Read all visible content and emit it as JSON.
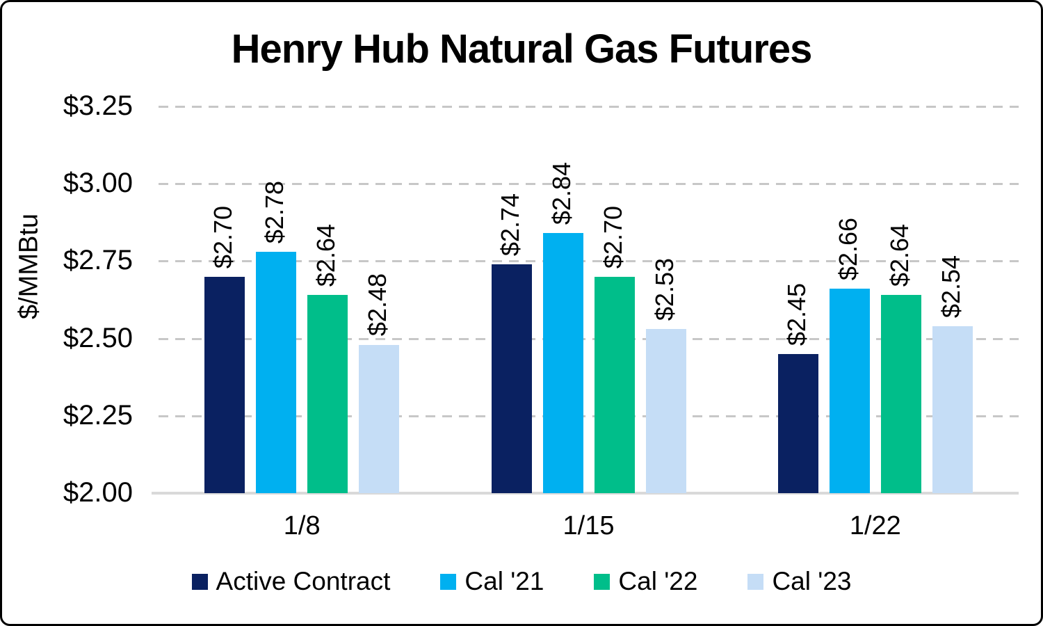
{
  "chart_data": {
    "type": "bar",
    "title": "Henry Hub Natural Gas Futures",
    "xlabel": "",
    "ylabel": "$/MMBtu",
    "categories": [
      "1/8",
      "1/15",
      "1/22"
    ],
    "series": [
      {
        "name": "Active Contract",
        "color": "#0a2161",
        "values": [
          2.7,
          2.74,
          2.45
        ],
        "labels": [
          "$2.70",
          "$2.74",
          "$2.45"
        ]
      },
      {
        "name": "Cal '21",
        "color": "#00b0f0",
        "values": [
          2.78,
          2.84,
          2.66
        ],
        "labels": [
          "$2.78",
          "$2.84",
          "$2.66"
        ]
      },
      {
        "name": "Cal '22",
        "color": "#00be8a",
        "values": [
          2.64,
          2.7,
          2.64
        ],
        "labels": [
          "$2.64",
          "$2.70",
          "$2.64"
        ]
      },
      {
        "name": "Cal '23",
        "color": "#c5ddf6",
        "values": [
          2.48,
          2.53,
          2.54
        ],
        "labels": [
          "$2.48",
          "$2.53",
          "$2.54"
        ]
      }
    ],
    "y_axis": {
      "ylim": [
        2.0,
        3.25
      ],
      "tick_step": 0.25,
      "tick_labels_top_to_bottom": [
        "$3.25",
        "$3.00",
        "$2.75",
        "$2.50",
        "$2.25",
        "$2.00"
      ],
      "tick_values_top_to_bottom": [
        3.25,
        3.0,
        2.75,
        2.5,
        2.25,
        2.0
      ],
      "grid": "dashed horizontal gridlines, solid baseline at $2.00"
    },
    "legend": {
      "position": "bottom",
      "entries": [
        "Active Contract",
        "Cal '21",
        "Cal '22",
        "Cal '23"
      ]
    },
    "colors": {
      "gridline": "#c7c7c7",
      "baseline": "#d9d9d9",
      "text": "#000000",
      "background": "#ffffff",
      "frame_border": "#000000"
    }
  }
}
